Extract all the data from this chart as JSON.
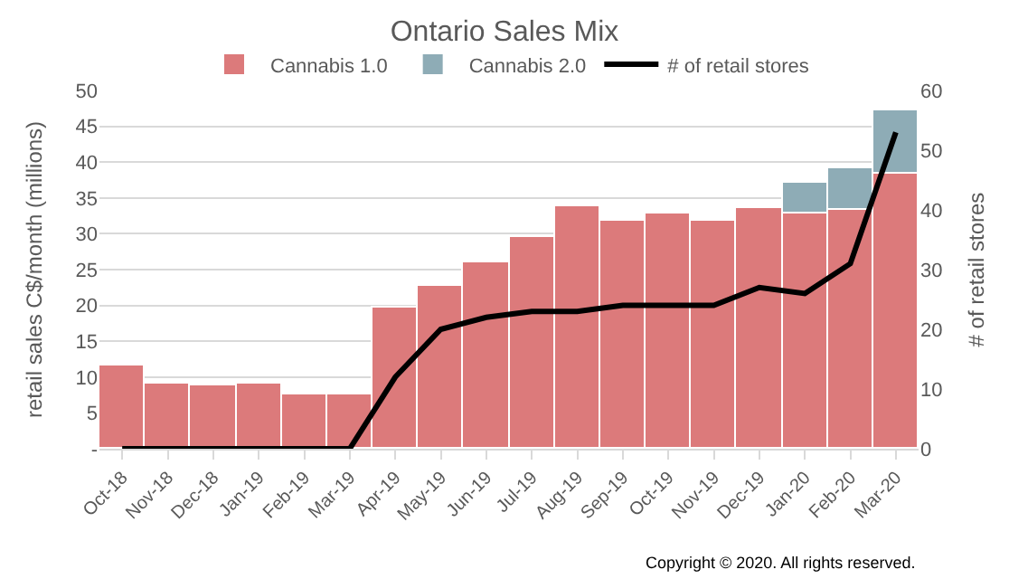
{
  "chart_data": {
    "type": "bar",
    "title": "Ontario Sales Mix",
    "ylabel": "retail sales C$/month (millions)",
    "y2label": "# of retail stores",
    "categories": [
      "Oct-18",
      "Nov-18",
      "Dec-18",
      "Jan-19",
      "Feb-19",
      "Mar-19",
      "Apr-19",
      "May-19",
      "Jun-19",
      "Jul-19",
      "Aug-19",
      "Sep-19",
      "Oct-19",
      "Nov-19",
      "Dec-19",
      "Jan-20",
      "Feb-20",
      "Mar-20"
    ],
    "stacked": true,
    "series": [
      {
        "name": "Cannabis 1.0",
        "color": "#dc7a7b",
        "values": [
          11.7,
          9.1,
          8.8,
          9.1,
          7.7,
          7.7,
          19.8,
          22.8,
          26,
          29.6,
          33.8,
          31.7,
          32.8,
          31.7,
          33.6,
          32.8,
          33.3,
          38.3
        ]
      },
      {
        "name": "Cannabis 2.0",
        "color": "#8eacb6",
        "values": [
          null,
          null,
          null,
          null,
          null,
          null,
          null,
          null,
          null,
          null,
          null,
          null,
          null,
          null,
          null,
          4.2,
          5.8,
          9
        ]
      },
      {
        "name": "# of retail stores",
        "type": "line",
        "axis": "y2",
        "color": "#000000",
        "values": [
          0,
          0,
          0,
          0,
          0,
          0,
          12,
          20,
          22,
          23,
          23,
          24,
          24,
          24,
          27,
          26,
          31,
          53
        ]
      }
    ],
    "ylim": [
      0,
      50
    ],
    "yticks": [
      {
        "value": 0,
        "label": "-"
      },
      5,
      10,
      15,
      20,
      25,
      30,
      35,
      40,
      45,
      50
    ],
    "y2lim": [
      0,
      60
    ],
    "y2ticks": [
      0,
      10,
      20,
      30,
      40,
      50,
      60
    ],
    "grid": "y",
    "legend": "top",
    "line_style": "solid",
    "marker": "none",
    "annotations": [
      "Copyright © 2020. All rights reserved."
    ]
  }
}
